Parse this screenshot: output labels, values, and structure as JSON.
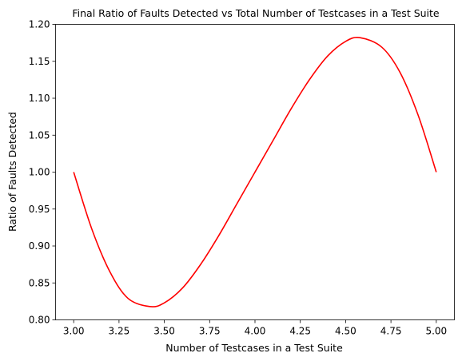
{
  "chart_data": {
    "type": "line",
    "title": "Final Ratio of Faults Detected vs Total Number of Testcases in a Test Suite",
    "xlabel": "Number of Testcases in a Test Suite",
    "ylabel": "Ratio of Faults Detected",
    "xlim": [
      2.9,
      5.1
    ],
    "ylim": [
      0.8,
      1.2
    ],
    "x_ticks": [
      "3.00",
      "3.25",
      "3.50",
      "3.75",
      "4.00",
      "4.25",
      "4.50",
      "4.75",
      "5.00"
    ],
    "y_ticks": [
      "0.80",
      "0.85",
      "0.90",
      "0.95",
      "1.00",
      "1.05",
      "1.10",
      "1.15",
      "1.20"
    ],
    "grid": false,
    "series": [
      {
        "color": "#ff0000",
        "x": [
          3.0,
          3.1,
          3.2,
          3.3,
          3.42,
          3.5,
          3.6,
          3.7,
          3.8,
          3.9,
          4.0,
          4.1,
          4.2,
          4.3,
          4.4,
          4.5,
          4.58,
          4.7,
          4.8,
          4.9,
          5.0
        ],
        "y": [
          1.0,
          0.923,
          0.865,
          0.829,
          0.818,
          0.823,
          0.843,
          0.875,
          0.914,
          0.957,
          1.0,
          1.043,
          1.086,
          1.125,
          1.157,
          1.177,
          1.182,
          1.169,
          1.135,
          1.077,
          1.0
        ]
      }
    ]
  }
}
